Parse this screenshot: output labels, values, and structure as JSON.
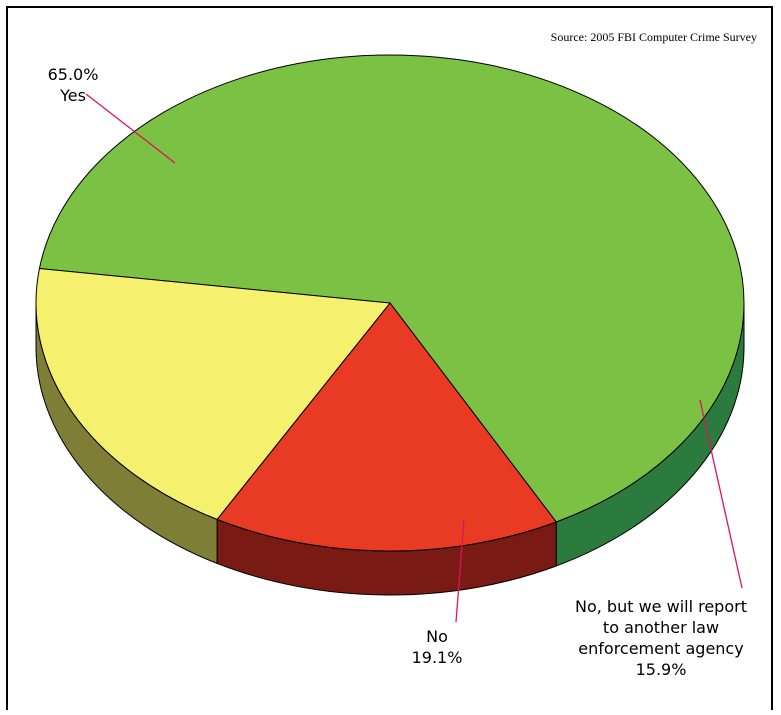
{
  "source": "Source: 2005 FBI Computer Crime Survey",
  "chart_data": {
    "type": "pie",
    "title": "",
    "slices": [
      {
        "label": "Yes",
        "value": 65.0,
        "value_text": "65.0%",
        "color": "#7BC143",
        "side_color": "#2A7B3D"
      },
      {
        "label": "No, but we will report to another law enforcement agency",
        "label_lines": [
          "No, but we will report",
          "to another law",
          "enforcement agency"
        ],
        "value": 15.9,
        "value_text": "15.9%",
        "color": "#E93A24",
        "side_color": "#7A1A14"
      },
      {
        "label": "No",
        "value": 19.1,
        "value_text": "19.1%",
        "color": "#F5F06E",
        "side_color": "#7F7E36"
      }
    ],
    "leader_line_color": "#E0115F"
  }
}
